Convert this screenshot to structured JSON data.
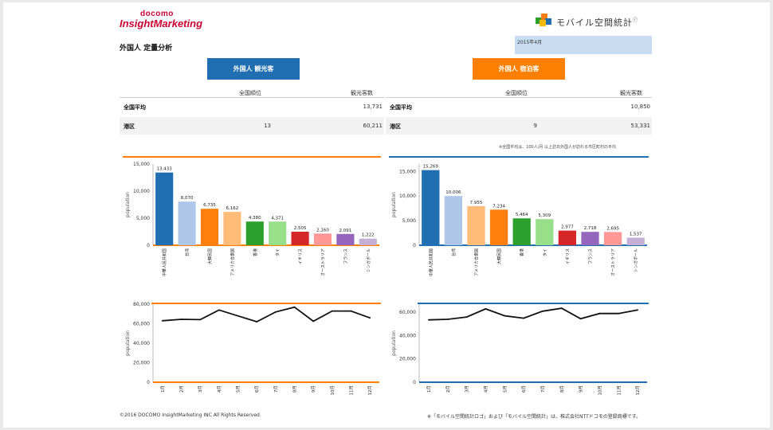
{
  "header": {
    "docomo": "docomo",
    "brand": "InsightMarketing",
    "report_title": "外国人 定量分析",
    "mobile_logo_text": "モバイル空間統計",
    "mobile_logo_mark": "ⓡ",
    "date": "2015年4月"
  },
  "left": {
    "tab_label": "外国人 観光客",
    "table": {
      "headers": [
        "全国順位",
        "観光客数"
      ],
      "rows": [
        {
          "label": "全国平均",
          "rank": "",
          "value": "13,731"
        },
        {
          "label": "港区",
          "rank": "13",
          "value": "60,211"
        }
      ]
    },
    "color": "#ff8000",
    "bar_chart": {
      "ylabel": "population",
      "yticks": [
        "15,000",
        "10,000",
        "5,000",
        "0"
      ],
      "categories": [
        "中華人民共和国",
        "台湾",
        "大韓民国",
        "アメリカ合衆国",
        "香港",
        "タイ",
        "イギリス",
        "オーストラリア",
        "フランス",
        "シンガポール"
      ],
      "labels": [
        "13,433",
        "8,070",
        "6,735",
        "6,162",
        "4,380",
        "4,371",
        "2,505",
        "2,160",
        "2,091",
        "1,222"
      ],
      "values": [
        13433,
        8070,
        6735,
        6162,
        4380,
        4371,
        2505,
        2160,
        2091,
        1222
      ],
      "ymax": 15000,
      "colors": [
        "#1f6fb2",
        "#aec7e8",
        "#ff7f0e",
        "#ffbb78",
        "#2ca02c",
        "#98df8a",
        "#d62728",
        "#ff9896",
        "#9467bd",
        "#c5b0d5"
      ]
    },
    "line_chart": {
      "ylabel": "population",
      "yticks": [
        "80,000",
        "60,000",
        "40,000",
        "20,000",
        "0"
      ],
      "ymax": 80000,
      "months": [
        "1月",
        "2月",
        "3月",
        "4月",
        "5月",
        "6月",
        "7月",
        "8月",
        "9月",
        "10月",
        "11月",
        "12月"
      ],
      "values": [
        63000,
        64500,
        64200,
        74000,
        68000,
        62000,
        72000,
        77000,
        62500,
        73000,
        73000,
        66000
      ]
    }
  },
  "right": {
    "tab_label": "外国人 宿泊客",
    "table": {
      "headers": [
        "全国順位",
        "観光客数"
      ],
      "rows": [
        {
          "label": "全国平均",
          "rank": "",
          "value": "10,850"
        },
        {
          "label": "港区",
          "rank": "9",
          "value": "53,331"
        }
      ]
    },
    "note": "※全国平均は、100人/月 以上訪日外国人が訪れる市区町村の平均",
    "color": "#1f6fb2",
    "bar_chart": {
      "ylabel": "population",
      "yticks": [
        "15,000",
        "10,000",
        "5,000",
        "0"
      ],
      "categories": [
        "中華人民共和国",
        "台湾",
        "アメリカ合衆国",
        "大韓民国",
        "香港",
        "タイ",
        "イギリス",
        "フランス",
        "オーストラリア",
        "シンガポール"
      ],
      "labels": [
        "15,269",
        "10,006",
        "7,955",
        "7,234",
        "5,464",
        "5,309",
        "2,977",
        "2,718",
        "2,695",
        "1,537"
      ],
      "values": [
        15269,
        10006,
        7955,
        7234,
        5464,
        5309,
        2977,
        2718,
        2695,
        1537
      ],
      "ymax": 16500,
      "colors": [
        "#1f6fb2",
        "#aec7e8",
        "#ffbb78",
        "#ff7f0e",
        "#2ca02c",
        "#98df8a",
        "#d62728",
        "#9467bd",
        "#ff9896",
        "#c5b0d5"
      ]
    },
    "line_chart": {
      "ylabel": "population",
      "yticks": [
        "60,000",
        "40,000",
        "20,000",
        "0"
      ],
      "ymax": 67000,
      "months": [
        "1月",
        "2月",
        "3月",
        "4月",
        "5月",
        "6月",
        "7月",
        "8月",
        "9月",
        "10月",
        "11月",
        "12月"
      ],
      "values": [
        53500,
        54000,
        56000,
        63000,
        57000,
        55000,
        61000,
        63500,
        54500,
        59000,
        59000,
        62000
      ]
    }
  },
  "footer": {
    "copyright": "©2016 DOCOMO InsightMarketing INC All Rights Reserved.",
    "trademark": "※「モバイル空間統計ロゴ」および「モバイル空間統計」は、株式会社NTTドコモの登録商標です。"
  },
  "chart_data": [
    {
      "type": "bar",
      "title": "",
      "ylabel": "population",
      "categories": [
        "中華人民共和国",
        "台湾",
        "大韓民国",
        "アメリカ合衆国",
        "香港",
        "タイ",
        "イギリス",
        "オーストラリア",
        "フランス",
        "シンガポール"
      ],
      "values": [
        13433,
        8070,
        6735,
        6162,
        4380,
        4371,
        2505,
        2160,
        2091,
        1222
      ],
      "ylim": [
        0,
        15000
      ]
    },
    {
      "type": "bar",
      "title": "",
      "ylabel": "population",
      "categories": [
        "中華人民共和国",
        "台湾",
        "アメリカ合衆国",
        "大韓民国",
        "香港",
        "タイ",
        "イギリス",
        "フランス",
        "オーストラリア",
        "シンガポール"
      ],
      "values": [
        15269,
        10006,
        7955,
        7234,
        5464,
        5309,
        2977,
        2718,
        2695,
        1537
      ],
      "ylim": [
        0,
        15000
      ]
    },
    {
      "type": "line",
      "title": "",
      "ylabel": "population",
      "x": [
        "1月",
        "2月",
        "3月",
        "4月",
        "5月",
        "6月",
        "7月",
        "8月",
        "9月",
        "10月",
        "11月",
        "12月"
      ],
      "values": [
        63000,
        64500,
        64200,
        74000,
        68000,
        62000,
        72000,
        77000,
        62500,
        73000,
        73000,
        66000
      ],
      "ylim": [
        0,
        80000
      ]
    },
    {
      "type": "line",
      "title": "",
      "ylabel": "population",
      "x": [
        "1月",
        "2月",
        "3月",
        "4月",
        "5月",
        "6月",
        "7月",
        "8月",
        "9月",
        "10月",
        "11月",
        "12月"
      ],
      "values": [
        53500,
        54000,
        56000,
        63000,
        57000,
        55000,
        61000,
        63500,
        54500,
        59000,
        59000,
        62000
      ],
      "ylim": [
        0,
        60000
      ]
    }
  ]
}
